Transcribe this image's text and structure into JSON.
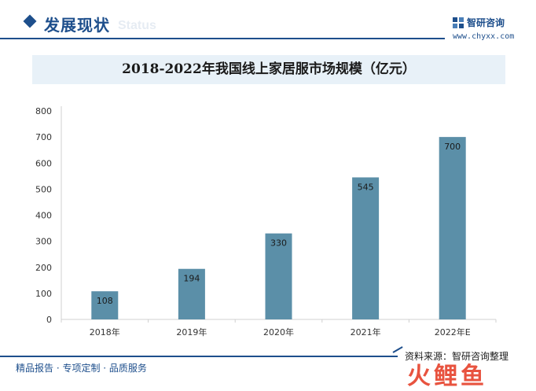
{
  "header": {
    "section_title": "发展现状",
    "section_ghost": "Status",
    "logo_name": "智研咨询",
    "logo_url": "www.chyxx.com"
  },
  "colors": {
    "bar": "#5b8fa8",
    "accent": "#1e4f8c",
    "title_band": "#e8f1f8"
  },
  "chart_data": {
    "type": "bar",
    "title": "2018-2022年我国线上家居服市场规模（亿元）",
    "categories": [
      "2018年",
      "2019年",
      "2020年",
      "2021年",
      "2022年E"
    ],
    "values": [
      108,
      194,
      330,
      545,
      700
    ],
    "data_labels": [
      "108",
      "194",
      "330",
      "545",
      "700"
    ],
    "yticks": [
      "0",
      "100",
      "200",
      "300",
      "400",
      "500",
      "600",
      "700",
      "800"
    ],
    "ylim": [
      0,
      800
    ],
    "xlabel": "",
    "ylabel": "",
    "grid": false,
    "legend": "none"
  },
  "footer": {
    "source": "资料来源：智研咨询整理",
    "tagline": "精品报告 · 专项定制 · 品质服务",
    "bottom_logo": "火鲤鱼"
  }
}
